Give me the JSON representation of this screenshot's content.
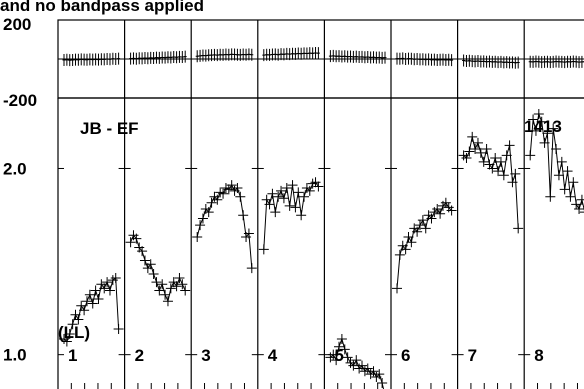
{
  "chart_data": {
    "type": "scatter",
    "title": "and no bandpass applied",
    "baseline_label": "JB - EF",
    "polarization_label": "(LL)",
    "source_label": "1413",
    "phase_panel": {
      "ylim": [
        -200,
        200
      ],
      "ytick_labels": [
        "200",
        "-200"
      ]
    },
    "amp_panel": {
      "ylim": [
        0.88,
        2.6
      ],
      "ytick_labels": [
        "2.0",
        "1.0"
      ],
      "ytick_values": [
        2.0,
        1.0
      ],
      "log_scale": true
    },
    "ifs": [
      {
        "label": "1",
        "phase": [
          -5,
          -4,
          -6,
          -5,
          -3,
          -4,
          -2,
          -3,
          -4,
          -2,
          -3,
          -2,
          -3,
          -1,
          -2,
          0,
          -1,
          1,
          0,
          2
        ],
        "amp": [
          1.06,
          1.05,
          1.08,
          1.12,
          1.16,
          1.14,
          1.2,
          1.18,
          1.22,
          1.25,
          1.21,
          1.27,
          1.23,
          1.3,
          1.28,
          1.31,
          1.27,
          1.32,
          1.33,
          1.1
        ]
      },
      {
        "label": "2",
        "phase": [
          2,
          3,
          1,
          4,
          3,
          5,
          4,
          6,
          5,
          7,
          6,
          8,
          7,
          9,
          8,
          10,
          9,
          11,
          10,
          12
        ],
        "amp": [
          1.52,
          1.56,
          1.54,
          1.49,
          1.47,
          1.42,
          1.38,
          1.4,
          1.35,
          1.31,
          1.27,
          1.3,
          1.25,
          1.22,
          1.28,
          1.31,
          1.29,
          1.33,
          1.3,
          1.27
        ]
      },
      {
        "label": "3",
        "phase": [
          14,
          16,
          18,
          17,
          19,
          20,
          21,
          20,
          22,
          21,
          23,
          22,
          24,
          23,
          22,
          21,
          23,
          22,
          24,
          22
        ],
        "amp": [
          1.55,
          1.62,
          1.66,
          1.72,
          1.7,
          1.76,
          1.8,
          1.78,
          1.83,
          1.82,
          1.86,
          1.85,
          1.88,
          1.84,
          1.86,
          1.8,
          1.68,
          1.55,
          1.57,
          1.38
        ]
      },
      {
        "label": "4",
        "phase": [
          20,
          22,
          21,
          23,
          24,
          22,
          25,
          24,
          26,
          25,
          27,
          26,
          28,
          27,
          29,
          28,
          30,
          29,
          31,
          30
        ],
        "amp": [
          1.48,
          1.78,
          1.75,
          1.82,
          1.7,
          1.8,
          1.84,
          1.79,
          1.86,
          1.74,
          1.88,
          1.73,
          1.83,
          1.68,
          1.8,
          1.86,
          1.84,
          1.89,
          1.9,
          1.87
        ]
      },
      {
        "label": "5",
        "phase": [
          15,
          16,
          14,
          15,
          13,
          14,
          12,
          13,
          11,
          12,
          10,
          11,
          9,
          10,
          8,
          9,
          7,
          8,
          6,
          7
        ],
        "amp": [
          0.99,
          1.0,
          0.98,
          1.03,
          1.06,
          1.02,
          0.99,
          0.97,
          0.96,
          0.98,
          0.95,
          0.96,
          0.94,
          0.95,
          0.93,
          0.94,
          0.92,
          0.93,
          0.9,
          0.86
        ]
      },
      {
        "label": "6",
        "phase": [
          2,
          1,
          3,
          0,
          2,
          1,
          -1,
          0,
          -2,
          -1,
          -3,
          -2,
          -4,
          -3,
          -5,
          -4,
          -3,
          -5,
          -4,
          -6
        ],
        "amp": [
          1.28,
          1.45,
          1.5,
          1.48,
          1.55,
          1.52,
          1.6,
          1.58,
          1.62,
          1.65,
          1.6,
          1.68,
          1.66,
          1.7,
          1.72,
          1.69,
          1.74,
          1.76,
          1.73,
          1.71
        ]
      },
      {
        "label": "7",
        "phase": [
          -8,
          -10,
          -9,
          -11,
          -12,
          -10,
          -13,
          -12,
          -14,
          -13,
          -15,
          -14,
          -16,
          -15,
          -17,
          -16,
          -18,
          -17,
          -19,
          -18
        ],
        "amp": [
          2.1,
          2.08,
          2.13,
          2.25,
          2.15,
          2.2,
          2.12,
          2.05,
          2.15,
          2.03,
          2.0,
          2.08,
          1.98,
          2.05,
          1.95,
          2.1,
          2.18,
          1.9,
          1.96,
          1.6
        ]
      },
      {
        "label": "8",
        "phase": [
          -14,
          -15,
          -13,
          -14,
          -16,
          -15,
          -14,
          -16,
          -15,
          -13,
          -14,
          -15,
          -16,
          -14,
          -15,
          -13,
          -14,
          -16,
          -15,
          -14
        ],
        "amp": [
          2.1,
          2.4,
          2.3,
          2.45,
          2.38,
          2.2,
          2.28,
          1.8,
          2.32,
          2.15,
          1.95,
          2.05,
          1.85,
          1.98,
          1.8,
          1.9,
          1.75,
          1.72,
          1.78,
          1.7
        ]
      }
    ]
  }
}
